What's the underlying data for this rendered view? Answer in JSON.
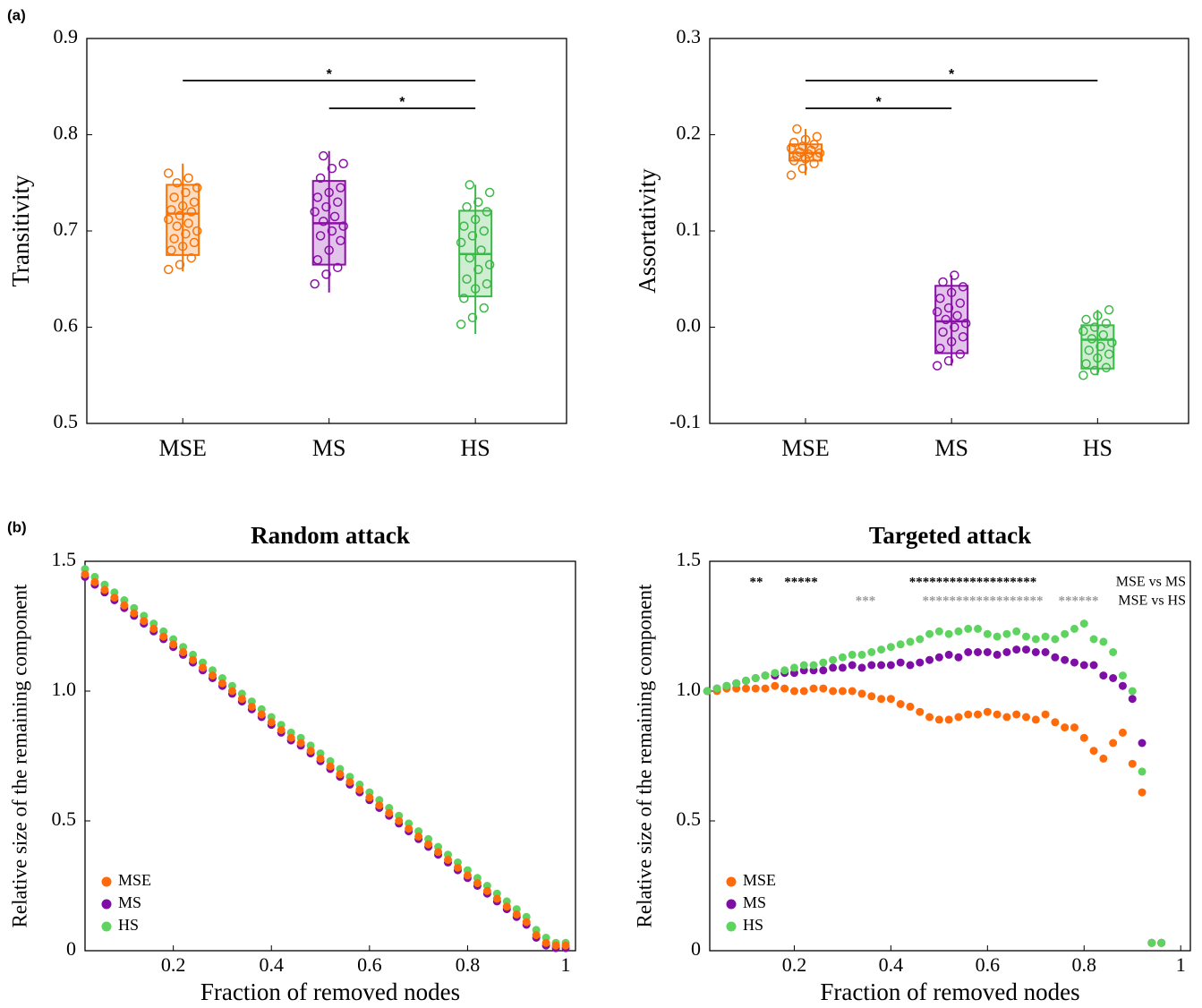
{
  "panel_labels": [
    "(a)",
    "(b)"
  ],
  "chart_data": [
    {
      "type": "box",
      "ylabel": "Transitivity",
      "categories": [
        "MSE",
        "MS",
        "HS"
      ],
      "colors": [
        "#f97306",
        "#8a0ea8",
        "#3cb848"
      ],
      "ylim": [
        0.5,
        0.9
      ],
      "yticks": [
        0.5,
        0.6,
        0.7,
        0.8,
        0.9
      ],
      "boxes": [
        {
          "min": 0.658,
          "q1": 0.675,
          "median": 0.718,
          "q3": 0.748,
          "max": 0.77,
          "points": [
            0.66,
            0.665,
            0.672,
            0.68,
            0.684,
            0.688,
            0.692,
            0.697,
            0.7,
            0.705,
            0.708,
            0.712,
            0.716,
            0.72,
            0.722,
            0.726,
            0.73,
            0.735,
            0.74,
            0.745,
            0.75,
            0.755,
            0.76
          ]
        },
        {
          "min": 0.636,
          "q1": 0.665,
          "median": 0.708,
          "q3": 0.752,
          "max": 0.783,
          "points": [
            0.645,
            0.655,
            0.662,
            0.67,
            0.68,
            0.69,
            0.695,
            0.7,
            0.705,
            0.71,
            0.715,
            0.72,
            0.725,
            0.73,
            0.735,
            0.74,
            0.745,
            0.755,
            0.765,
            0.77,
            0.778
          ]
        },
        {
          "min": 0.593,
          "q1": 0.632,
          "median": 0.676,
          "q3": 0.721,
          "max": 0.748,
          "points": [
            0.603,
            0.61,
            0.62,
            0.63,
            0.64,
            0.645,
            0.65,
            0.66,
            0.665,
            0.672,
            0.68,
            0.688,
            0.695,
            0.7,
            0.705,
            0.712,
            0.72,
            0.725,
            0.73,
            0.74,
            0.748
          ]
        }
      ],
      "significance": [
        {
          "from": "MSE",
          "to": "HS",
          "label": "*"
        },
        {
          "from": "MS",
          "to": "HS",
          "label": "*"
        }
      ]
    },
    {
      "type": "box",
      "ylabel": "Assortativity",
      "categories": [
        "MSE",
        "MS",
        "HS"
      ],
      "colors": [
        "#f97306",
        "#8a0ea8",
        "#3cb848"
      ],
      "ylim": [
        -0.1,
        0.3
      ],
      "yticks": [
        -0.1,
        {
          "value": 0,
          "label": "0.0"
        },
        0.1,
        0.2,
        0.3
      ],
      "boxes": [
        {
          "min": 0.158,
          "q1": 0.173,
          "median": 0.181,
          "q3": 0.19,
          "max": 0.206,
          "points": [
            0.158,
            0.165,
            0.17,
            0.173,
            0.175,
            0.177,
            0.178,
            0.18,
            0.181,
            0.182,
            0.184,
            0.186,
            0.188,
            0.19,
            0.192,
            0.195,
            0.198,
            0.206
          ]
        },
        {
          "min": -0.04,
          "q1": -0.027,
          "median": 0.006,
          "q3": 0.043,
          "max": 0.054,
          "points": [
            -0.04,
            -0.035,
            -0.028,
            -0.022,
            -0.015,
            -0.01,
            -0.005,
            0.0,
            0.004,
            0.008,
            0.012,
            0.016,
            0.02,
            0.025,
            0.03,
            0.036,
            0.042,
            0.047,
            0.054
          ]
        },
        {
          "min": -0.05,
          "q1": -0.043,
          "median": -0.013,
          "q3": 0.002,
          "max": 0.018,
          "points": [
            -0.05,
            -0.045,
            -0.042,
            -0.038,
            -0.032,
            -0.028,
            -0.024,
            -0.02,
            -0.016,
            -0.012,
            -0.008,
            -0.004,
            0.0,
            0.004,
            0.008,
            0.012,
            0.018
          ]
        }
      ],
      "significance": [
        {
          "from": "MSE",
          "to": "HS",
          "label": "*"
        },
        {
          "from": "MSE",
          "to": "MS",
          "label": "*"
        }
      ]
    },
    {
      "type": "scatter",
      "title": "Random attack",
      "xlabel": "Fraction of removed nodes",
      "ylabel": "Relative size of the remaining component",
      "xlim": [
        0.02,
        1.02
      ],
      "xticks": [
        0.2,
        0.4,
        0.6,
        0.8,
        1
      ],
      "ylim": [
        0,
        1.5
      ],
      "yticks": [
        0,
        0.5,
        {
          "value": 1,
          "label": "1.0"
        },
        1.5
      ],
      "legend": "lower left",
      "x": [
        0.02,
        0.04,
        0.06,
        0.08,
        0.1,
        0.12,
        0.14,
        0.16,
        0.18,
        0.2,
        0.22,
        0.24,
        0.26,
        0.28,
        0.3,
        0.32,
        0.34,
        0.36,
        0.38,
        0.4,
        0.42,
        0.44,
        0.46,
        0.48,
        0.5,
        0.52,
        0.54,
        0.56,
        0.58,
        0.6,
        0.62,
        0.64,
        0.66,
        0.68,
        0.7,
        0.72,
        0.74,
        0.76,
        0.78,
        0.8,
        0.82,
        0.84,
        0.86,
        0.88,
        0.9,
        0.92,
        0.94,
        0.96,
        0.98,
        1.0
      ],
      "series": [
        {
          "name": "HS",
          "color": "#5fd35f",
          "values": [
            1.47,
            1.44,
            1.41,
            1.38,
            1.35,
            1.32,
            1.29,
            1.26,
            1.23,
            1.2,
            1.17,
            1.14,
            1.11,
            1.08,
            1.05,
            1.02,
            0.99,
            0.96,
            0.93,
            0.9,
            0.87,
            0.84,
            0.82,
            0.79,
            0.76,
            0.73,
            0.7,
            0.67,
            0.64,
            0.61,
            0.58,
            0.55,
            0.52,
            0.49,
            0.46,
            0.43,
            0.4,
            0.37,
            0.34,
            0.31,
            0.28,
            0.25,
            0.22,
            0.19,
            0.16,
            0.13,
            0.08,
            0.05,
            0.03,
            0.03
          ]
        },
        {
          "name": "MS",
          "color": "#7e0ea6",
          "values": [
            1.44,
            1.41,
            1.38,
            1.35,
            1.32,
            1.29,
            1.26,
            1.23,
            1.2,
            1.17,
            1.14,
            1.11,
            1.08,
            1.05,
            1.02,
            0.99,
            0.96,
            0.93,
            0.9,
            0.87,
            0.84,
            0.81,
            0.79,
            0.76,
            0.73,
            0.7,
            0.67,
            0.64,
            0.61,
            0.58,
            0.55,
            0.52,
            0.49,
            0.46,
            0.43,
            0.4,
            0.37,
            0.34,
            0.31,
            0.28,
            0.25,
            0.22,
            0.19,
            0.16,
            0.13,
            0.1,
            0.05,
            0.02,
            0.01,
            0.01
          ]
        },
        {
          "name": "MSE",
          "color": "#ff6a0a",
          "values": [
            1.45,
            1.42,
            1.39,
            1.36,
            1.33,
            1.3,
            1.27,
            1.24,
            1.21,
            1.18,
            1.15,
            1.12,
            1.09,
            1.06,
            1.03,
            1.0,
            0.97,
            0.94,
            0.91,
            0.88,
            0.85,
            0.82,
            0.8,
            0.77,
            0.74,
            0.71,
            0.68,
            0.65,
            0.62,
            0.59,
            0.56,
            0.53,
            0.5,
            0.47,
            0.44,
            0.41,
            0.38,
            0.35,
            0.32,
            0.29,
            0.26,
            0.23,
            0.2,
            0.17,
            0.14,
            0.11,
            0.06,
            0.03,
            0.02,
            0.02
          ]
        }
      ]
    },
    {
      "type": "scatter",
      "title": "Targeted attack",
      "xlabel": "Fraction of removed nodes",
      "ylabel": "Relative size of the remaining component",
      "xlim": [
        0.025,
        1.02
      ],
      "xticks": [
        0.2,
        0.4,
        0.6,
        0.8,
        1
      ],
      "ylim": [
        0,
        1.5
      ],
      "yticks": [
        0,
        0.5,
        {
          "value": 1,
          "label": "1.0"
        },
        1.5
      ],
      "legend": "lower left",
      "x": [
        0.02,
        0.04,
        0.06,
        0.08,
        0.1,
        0.12,
        0.14,
        0.16,
        0.18,
        0.2,
        0.22,
        0.24,
        0.26,
        0.28,
        0.3,
        0.32,
        0.34,
        0.36,
        0.38,
        0.4,
        0.42,
        0.44,
        0.46,
        0.48,
        0.5,
        0.52,
        0.54,
        0.56,
        0.58,
        0.6,
        0.62,
        0.64,
        0.66,
        0.68,
        0.7,
        0.72,
        0.74,
        0.76,
        0.78,
        0.8,
        0.82,
        0.84,
        0.86,
        0.88,
        0.9,
        0.92,
        0.94,
        0.96
      ],
      "series": [
        {
          "name": "MSE",
          "color": "#ff6a0a",
          "values": [
            1.0,
            1.0,
            1.01,
            1.01,
            1.01,
            1.01,
            1.01,
            1.02,
            1.01,
            1.0,
            1.0,
            1.01,
            1.01,
            1.0,
            1.0,
            1.0,
            0.99,
            0.98,
            0.97,
            0.97,
            0.95,
            0.94,
            0.92,
            0.9,
            0.89,
            0.89,
            0.9,
            0.91,
            0.91,
            0.92,
            0.91,
            0.9,
            0.91,
            0.9,
            0.89,
            0.91,
            0.88,
            0.86,
            0.86,
            0.82,
            0.77,
            0.74,
            0.8,
            0.84,
            0.72,
            0.61,
            0.03,
            0.03
          ]
        },
        {
          "name": "MS",
          "color": "#7e0ea6",
          "values": [
            1.0,
            1.01,
            1.02,
            1.03,
            1.04,
            1.05,
            1.06,
            1.06,
            1.07,
            1.07,
            1.08,
            1.08,
            1.08,
            1.09,
            1.09,
            1.1,
            1.09,
            1.1,
            1.1,
            1.1,
            1.11,
            1.1,
            1.11,
            1.12,
            1.13,
            1.14,
            1.13,
            1.15,
            1.15,
            1.15,
            1.14,
            1.15,
            1.16,
            1.16,
            1.15,
            1.15,
            1.13,
            1.12,
            1.11,
            1.1,
            1.1,
            1.06,
            1.05,
            1.02,
            0.97,
            0.8,
            0.03,
            0.03
          ]
        },
        {
          "name": "HS",
          "color": "#5fd35f",
          "values": [
            1.0,
            1.01,
            1.02,
            1.03,
            1.04,
            1.05,
            1.06,
            1.07,
            1.08,
            1.09,
            1.1,
            1.1,
            1.11,
            1.12,
            1.13,
            1.14,
            1.14,
            1.15,
            1.16,
            1.17,
            1.18,
            1.19,
            1.2,
            1.22,
            1.23,
            1.22,
            1.23,
            1.24,
            1.24,
            1.22,
            1.21,
            1.22,
            1.23,
            1.21,
            1.2,
            1.21,
            1.2,
            1.22,
            1.24,
            1.26,
            1.2,
            1.19,
            1.15,
            1.06,
            1.0,
            0.69,
            0.03,
            0.03
          ]
        }
      ],
      "annotations": [
        {
          "text": "**",
          "color": "#000000"
        },
        {
          "text": "*****",
          "color": "#000000"
        },
        {
          "text": "*******************",
          "color": "#000000"
        },
        {
          "text": "MSE vs MS",
          "color": "#000000"
        },
        {
          "text": "***",
          "color": "#999999"
        },
        {
          "text": "******************",
          "color": "#999999"
        },
        {
          "text": "******",
          "color": "#999999"
        },
        {
          "text": "MSE vs HS",
          "color": "#000000"
        }
      ]
    }
  ]
}
